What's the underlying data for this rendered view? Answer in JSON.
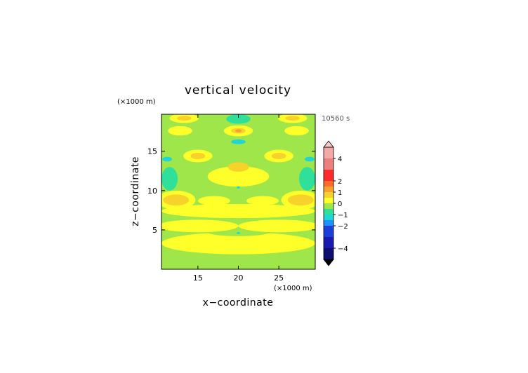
{
  "chart_data": {
    "type": "heatmap",
    "title": "vertical velocity",
    "time_label": "10560 s",
    "xlabel": "x−coordinate",
    "ylabel": "z−coordinate",
    "x_unit": "(×1000 m)",
    "y_unit": "(×1000 m)",
    "xlim": [
      10.5,
      29.5
    ],
    "ylim": [
      0,
      19.7
    ],
    "x_ticks": [
      15,
      20,
      25
    ],
    "y_ticks": [
      5,
      10,
      15
    ],
    "x_tick_labels": [
      "15",
      "20",
      "25"
    ],
    "y_tick_labels": [
      "5",
      "10",
      "15"
    ],
    "colorbar": {
      "range": [
        -5,
        5
      ],
      "ticks": [
        4,
        2,
        1,
        0,
        -1,
        -2,
        -4
      ],
      "tick_labels": [
        "4",
        "2",
        "1",
        "0",
        "−1",
        "−2",
        "−4"
      ],
      "bands": [
        {
          "from": 4,
          "to": 5,
          "color": "#f4a8a8"
        },
        {
          "from": 3,
          "to": 4,
          "color": "#ee7f7f"
        },
        {
          "from": 2,
          "to": 3,
          "color": "#ff2b2b"
        },
        {
          "from": 1.5,
          "to": 2,
          "color": "#ff6a2a"
        },
        {
          "from": 1,
          "to": 1.5,
          "color": "#f7a030"
        },
        {
          "from": 0.5,
          "to": 1,
          "color": "#f7d22a"
        },
        {
          "from": 0,
          "to": 0.5,
          "color": "#ffff2a"
        },
        {
          "from": -0.5,
          "to": 0,
          "color": "#9ee64a"
        },
        {
          "from": -1,
          "to": -0.5,
          "color": "#2fe09a"
        },
        {
          "from": -1.5,
          "to": -1,
          "color": "#1fd6d6"
        },
        {
          "from": -2,
          "to": -1.5,
          "color": "#1e90ff"
        },
        {
          "from": -3,
          "to": -2,
          "color": "#1c3fd8"
        },
        {
          "from": -4,
          "to": -3,
          "color": "#1a1ab0"
        },
        {
          "from": -5,
          "to": -4,
          "color": "#0e0e70"
        }
      ],
      "over_color": "#f8c8c8",
      "under_color": "#000000"
    },
    "background_value": -0.25,
    "regions": [
      {
        "shape": "ellipse",
        "x": 20,
        "y": 3.3,
        "rx": 9.5,
        "ry": 1.4,
        "value": 0.25
      },
      {
        "shape": "ellipse",
        "x": 20,
        "y": 4.8,
        "rx": 4,
        "ry": 0.6,
        "value": -0.25
      },
      {
        "shape": "ellipse",
        "x": 15,
        "y": 5.5,
        "rx": 5,
        "ry": 0.8,
        "value": 0.25
      },
      {
        "shape": "ellipse",
        "x": 25,
        "y": 5.5,
        "rx": 5,
        "ry": 0.8,
        "value": 0.25
      },
      {
        "shape": "ellipse",
        "x": 20,
        "y": 7.4,
        "rx": 9.5,
        "ry": 0.9,
        "value": 0.25
      },
      {
        "shape": "ellipse",
        "x": 12.3,
        "y": 8.8,
        "rx": 2.4,
        "ry": 1.2,
        "value": 0.25
      },
      {
        "shape": "ellipse",
        "x": 27.7,
        "y": 8.8,
        "rx": 2.4,
        "ry": 1.2,
        "value": 0.25
      },
      {
        "shape": "ellipse",
        "x": 12.3,
        "y": 8.8,
        "rx": 1.6,
        "ry": 0.7,
        "value": 0.75
      },
      {
        "shape": "ellipse",
        "x": 27.7,
        "y": 8.8,
        "rx": 1.6,
        "ry": 0.7,
        "value": 0.75
      },
      {
        "shape": "ellipse",
        "x": 17,
        "y": 8.7,
        "rx": 2,
        "ry": 0.6,
        "value": 0.25
      },
      {
        "shape": "ellipse",
        "x": 23,
        "y": 8.7,
        "rx": 2,
        "ry": 0.6,
        "value": 0.25
      },
      {
        "shape": "ellipse",
        "x": 20,
        "y": 11.8,
        "rx": 3.8,
        "ry": 1.3,
        "value": 0.25
      },
      {
        "shape": "ellipse",
        "x": 20,
        "y": 13,
        "rx": 1.3,
        "ry": 0.6,
        "value": 0.75
      },
      {
        "shape": "ellipse",
        "x": 11.5,
        "y": 11.5,
        "rx": 1,
        "ry": 1.5,
        "value": -0.75
      },
      {
        "shape": "ellipse",
        "x": 28.5,
        "y": 11.5,
        "rx": 1,
        "ry": 1.5,
        "value": -0.75
      },
      {
        "shape": "ellipse",
        "x": 11.2,
        "y": 14,
        "rx": 0.6,
        "ry": 0.3,
        "value": -1.25
      },
      {
        "shape": "ellipse",
        "x": 28.8,
        "y": 14,
        "rx": 0.6,
        "ry": 0.3,
        "value": -1.25
      },
      {
        "shape": "ellipse",
        "x": 15,
        "y": 14.4,
        "rx": 1.8,
        "ry": 0.8,
        "value": 0.25
      },
      {
        "shape": "ellipse",
        "x": 25,
        "y": 14.4,
        "rx": 1.8,
        "ry": 0.8,
        "value": 0.25
      },
      {
        "shape": "ellipse",
        "x": 15,
        "y": 14.4,
        "rx": 0.9,
        "ry": 0.4,
        "value": 0.75
      },
      {
        "shape": "ellipse",
        "x": 25,
        "y": 14.4,
        "rx": 0.9,
        "ry": 0.4,
        "value": 0.75
      },
      {
        "shape": "ellipse",
        "x": 20,
        "y": 16.2,
        "rx": 0.9,
        "ry": 0.3,
        "value": -1.25
      },
      {
        "shape": "ellipse",
        "x": 12.8,
        "y": 17.6,
        "rx": 1.5,
        "ry": 0.6,
        "value": 0.25
      },
      {
        "shape": "ellipse",
        "x": 27.2,
        "y": 17.6,
        "rx": 1.5,
        "ry": 0.6,
        "value": 0.25
      },
      {
        "shape": "ellipse",
        "x": 20,
        "y": 17.6,
        "rx": 1.8,
        "ry": 0.7,
        "value": 0.25
      },
      {
        "shape": "ellipse",
        "x": 20,
        "y": 17.6,
        "rx": 0.9,
        "ry": 0.35,
        "value": 0.75
      },
      {
        "shape": "ellipse",
        "x": 20,
        "y": 17.6,
        "rx": 0.4,
        "ry": 0.2,
        "value": 1.25
      },
      {
        "shape": "ellipse",
        "x": 20,
        "y": 19.1,
        "rx": 1.5,
        "ry": 0.6,
        "value": -0.75
      },
      {
        "shape": "ellipse",
        "x": 13.3,
        "y": 19.2,
        "rx": 1.8,
        "ry": 0.6,
        "value": 0.25
      },
      {
        "shape": "ellipse",
        "x": 26.7,
        "y": 19.2,
        "rx": 1.8,
        "ry": 0.6,
        "value": 0.25
      },
      {
        "shape": "ellipse",
        "x": 13.3,
        "y": 19.2,
        "rx": 0.9,
        "ry": 0.3,
        "value": 0.75
      },
      {
        "shape": "ellipse",
        "x": 26.7,
        "y": 19.2,
        "rx": 0.9,
        "ry": 0.3,
        "value": 0.75
      },
      {
        "shape": "ellipse",
        "x": 20,
        "y": 10.4,
        "rx": 0.2,
        "ry": 0.15,
        "value": -1.25
      },
      {
        "shape": "ellipse",
        "x": 20,
        "y": 4.6,
        "rx": 0.2,
        "ry": 0.12,
        "value": -1.25
      }
    ]
  }
}
